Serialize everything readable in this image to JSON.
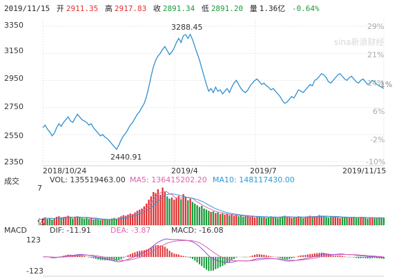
{
  "header": {
    "date": "2019/11/15",
    "open_label": "开",
    "open": "2911.35",
    "high_label": "高",
    "high": "2917.83",
    "close_label": "收",
    "close": "2891.34",
    "low_label": "低",
    "low": "2891.20",
    "volume_label": "量",
    "volume": "1.36亿",
    "change": "-0.64%"
  },
  "watermark": "sina新浪财经",
  "colors": {
    "price_line": "#2a8fd0",
    "up": "#e03030",
    "down": "#1a9a3a",
    "ma5": "#e060b0",
    "ma10": "#2a9ad6",
    "grid": "#e6e6e6"
  },
  "chart_data": [
    {
      "type": "line",
      "name": "price",
      "y_ticks": [
        "3350",
        "3150",
        "2950",
        "2750",
        "2550",
        "2350"
      ],
      "y_tick_values": [
        3350,
        3150,
        2950,
        2750,
        2550,
        2350
      ],
      "pct_ticks": [
        "29%",
        "21%",
        "14%",
        "6%",
        "-2%",
        "-10%"
      ],
      "x_labels": [
        "2018/10/24",
        "2019/4",
        "2019/7",
        "2019/11/15"
      ],
      "ylim": [
        2350,
        3350
      ],
      "annotations": [
        {
          "text": "3288.45"
        },
        {
          "text": "2440.91"
        }
      ],
      "pct_badge": "-1%",
      "values": [
        2600,
        2620,
        2590,
        2570,
        2540,
        2560,
        2600,
        2630,
        2610,
        2640,
        2660,
        2680,
        2650,
        2640,
        2670,
        2700,
        2680,
        2660,
        2650,
        2640,
        2620,
        2630,
        2600,
        2580,
        2560,
        2540,
        2550,
        2530,
        2520,
        2500,
        2480,
        2460,
        2441,
        2470,
        2510,
        2540,
        2560,
        2590,
        2620,
        2640,
        2670,
        2700,
        2720,
        2750,
        2780,
        2830,
        2900,
        2980,
        3050,
        3100,
        3130,
        3150,
        3180,
        3200,
        3170,
        3140,
        3160,
        3190,
        3230,
        3260,
        3230,
        3280,
        3288,
        3260,
        3290,
        3250,
        3200,
        3150,
        3100,
        3040,
        2980,
        2920,
        2870,
        2890,
        2860,
        2900,
        2870,
        2880,
        2850,
        2870,
        2890,
        2860,
        2900,
        2930,
        2950,
        2920,
        2890,
        2870,
        2860,
        2880,
        2910,
        2930,
        2950,
        2960,
        2940,
        2920,
        2930,
        2910,
        2900,
        2880,
        2890,
        2870,
        2850,
        2830,
        2800,
        2780,
        2790,
        2810,
        2830,
        2820,
        2850,
        2880,
        2870,
        2860,
        2880,
        2900,
        2920,
        2910,
        2950,
        2960,
        2980,
        3000,
        2990,
        2970,
        2940,
        2930,
        2950,
        2970,
        2990,
        3000,
        2980,
        2960,
        2950,
        2970,
        2980,
        2960,
        2940,
        2930,
        2950,
        2960,
        2940,
        2920,
        2930,
        2950,
        2940,
        2920,
        2910,
        2900,
        2891
      ]
    },
    {
      "type": "bar",
      "name": "volume",
      "title": "成交",
      "legend": {
        "vol_label": "VOL: 135519463.00",
        "ma5_label": "MA5: 136415202.20",
        "ma10_label": "MA10: 148117430.00"
      },
      "y_top_label": "7",
      "y_bottom_label": "亿",
      "values": [
        1.2,
        1.4,
        1.1,
        1.3,
        1.0,
        1.2,
        1.5,
        1.6,
        1.3,
        1.4,
        1.5,
        1.7,
        1.4,
        1.2,
        1.5,
        1.6,
        1.4,
        1.3,
        1.2,
        1.3,
        1.1,
        1.2,
        1.0,
        1.1,
        1.0,
        0.9,
        1.0,
        1.1,
        0.9,
        1.0,
        1.2,
        1.3,
        1.1,
        1.4,
        1.6,
        1.8,
        1.7,
        1.9,
        2.1,
        2.0,
        2.3,
        2.6,
        2.8,
        3.0,
        3.4,
        3.9,
        4.6,
        5.2,
        6.0,
        5.8,
        6.5,
        5.5,
        6.8,
        6.0,
        5.2,
        4.8,
        5.0,
        4.6,
        4.9,
        5.3,
        4.7,
        5.6,
        5.0,
        4.5,
        4.8,
        4.2,
        3.9,
        3.6,
        3.3,
        3.5,
        3.0,
        2.8,
        2.6,
        2.4,
        2.5,
        2.2,
        2.3,
        2.0,
        2.1,
        1.9,
        2.0,
        1.8,
        1.9,
        1.7,
        1.8,
        1.6,
        1.7,
        1.5,
        1.6,
        1.7,
        1.5,
        1.6,
        1.4,
        1.5,
        1.6,
        1.4,
        1.5,
        1.3,
        1.4,
        1.6,
        1.5,
        1.4,
        1.3,
        1.5,
        1.6,
        1.7,
        1.5,
        1.4,
        1.3,
        1.4,
        1.5,
        1.6,
        1.4,
        1.3,
        1.5,
        1.6,
        1.7,
        1.6,
        1.5,
        1.6,
        1.8,
        1.7,
        1.6,
        1.5,
        1.4,
        1.5,
        1.6,
        1.5,
        1.4,
        1.3,
        1.4,
        1.5,
        1.4,
        1.3,
        1.4,
        1.5,
        1.3,
        1.4,
        1.5,
        1.4,
        1.3,
        1.2,
        1.4,
        1.3,
        1.2,
        1.3,
        1.4,
        1.3,
        1.36
      ],
      "ylim": [
        0,
        7
      ]
    },
    {
      "type": "bar",
      "name": "macd",
      "title": "MACD",
      "legend": {
        "dif_label": "DIF: -11.91",
        "dea_label": "DEA: -3.87",
        "macd_label": "MACD: -16.08"
      },
      "y_top_label": "123",
      "y_bottom_label": "-123",
      "ylim": [
        -123,
        123
      ]
    }
  ]
}
